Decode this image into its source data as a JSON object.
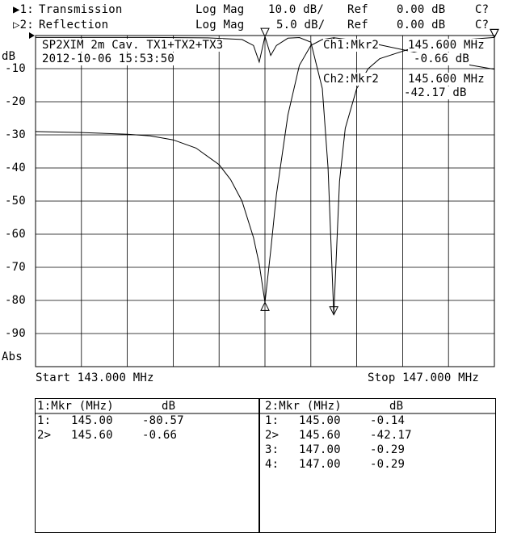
{
  "header": {
    "ch1": {
      "marker": "▶1:",
      "name": "Transmission",
      "format": "Log Mag",
      "scale": "10.0 dB/",
      "ref_label": "Ref",
      "ref": "0.00 dB",
      "cal": "C?"
    },
    "ch2": {
      "marker": "▷2:",
      "name": "Reflection",
      "format": "Log Mag",
      "scale": "5.0 dB/",
      "ref_label": "Ref",
      "ref": "0.00 dB",
      "cal": "C?"
    }
  },
  "plot": {
    "title_line1": "SP2XIM 2m Cav. TX1+TX2+TX3",
    "title_line2": "2012-10-06 15:53:50",
    "y_unit": "dB",
    "abs_label": "Abs",
    "start": "Start 143.000 MHz",
    "stop": "Stop 147.000 MHz",
    "ch1_marker_readout": {
      "label": "Ch1:Mkr2",
      "freq": "145.600 MHz",
      "value": "-0.66 dB"
    },
    "ch2_marker_readout": {
      "label": "Ch2:Mkr2",
      "freq": "145.600 MHz",
      "value": "-42.17 dB"
    },
    "y_ticks": [
      "-10",
      "-20",
      "-30",
      "-40",
      "-50",
      "-60",
      "-70",
      "-80",
      "-90"
    ]
  },
  "chart_data": {
    "type": "line",
    "xlim": [
      143.0,
      147.0
    ],
    "ylim": [
      -100,
      0
    ],
    "xlabel": "",
    "ylabel": "dB",
    "grid": true,
    "series": [
      {
        "name": "1:Transmission",
        "x": [
          143.0,
          143.4,
          143.8,
          144.0,
          144.2,
          144.4,
          144.6,
          144.7,
          144.8,
          144.9,
          144.95,
          145.0,
          145.05,
          145.1,
          145.2,
          145.3,
          145.4,
          145.5,
          145.6,
          145.8,
          146.0,
          146.3,
          146.6,
          146.8,
          147.0
        ],
        "values": [
          -29.0,
          -29.3,
          -29.8,
          -30.3,
          -31.5,
          -34.0,
          -39.0,
          -43.5,
          -50.0,
          -61.0,
          -69.0,
          -80.6,
          -65.0,
          -48.0,
          -24.0,
          -9.0,
          -3.0,
          -1.2,
          -0.66,
          -1.5,
          -2.8,
          -5.0,
          -7.5,
          -9.0,
          -10.2
        ]
      },
      {
        "name": "2:Reflection",
        "x": [
          143.0,
          144.0,
          144.5,
          144.8,
          144.9,
          144.95,
          145.0,
          145.05,
          145.1,
          145.2,
          145.3,
          145.4,
          145.5,
          145.55,
          145.6,
          145.65,
          145.7,
          145.8,
          145.9,
          146.0,
          146.3,
          146.6,
          147.0
        ],
        "values": [
          -0.29,
          -0.29,
          -0.35,
          -0.6,
          -1.5,
          -4.0,
          -0.14,
          -3.0,
          -1.5,
          -0.4,
          -0.3,
          -1.0,
          -8.0,
          -20.0,
          -42.17,
          -22.0,
          -14.0,
          -8.0,
          -5.0,
          -3.5,
          -1.8,
          -0.8,
          -0.29
        ]
      }
    ],
    "markers": {
      "ch1": [
        {
          "id": "1",
          "freq_mhz": 145.0,
          "value_db": -80.57
        },
        {
          "id": "2",
          "freq_mhz": 145.6,
          "value_db": -0.66
        }
      ],
      "ch2": [
        {
          "id": "1",
          "freq_mhz": 145.0,
          "value_db": -0.14
        },
        {
          "id": "2",
          "freq_mhz": 145.6,
          "value_db": -42.17
        },
        {
          "id": "3",
          "freq_mhz": 147.0,
          "value_db": -0.29
        },
        {
          "id": "4",
          "freq_mhz": 147.0,
          "value_db": -0.29
        }
      ]
    }
  },
  "table1": {
    "header_mkr": "1:Mkr (MHz)",
    "header_db": "dB",
    "rows": [
      {
        "mkr": "1:",
        "freq": "145.00",
        "db": "-80.57"
      },
      {
        "mkr": "2>",
        "freq": "145.60",
        "db": "-0.66"
      }
    ]
  },
  "table2": {
    "header_mkr": "2:Mkr (MHz)",
    "header_db": "dB",
    "rows": [
      {
        "mkr": "1:",
        "freq": "145.00",
        "db": "-0.14"
      },
      {
        "mkr": "2>",
        "freq": "145.60",
        "db": "-42.17"
      },
      {
        "mkr": "3:",
        "freq": "147.00",
        "db": "-0.29"
      },
      {
        "mkr": "4:",
        "freq": "147.00",
        "db": "-0.29"
      }
    ]
  }
}
